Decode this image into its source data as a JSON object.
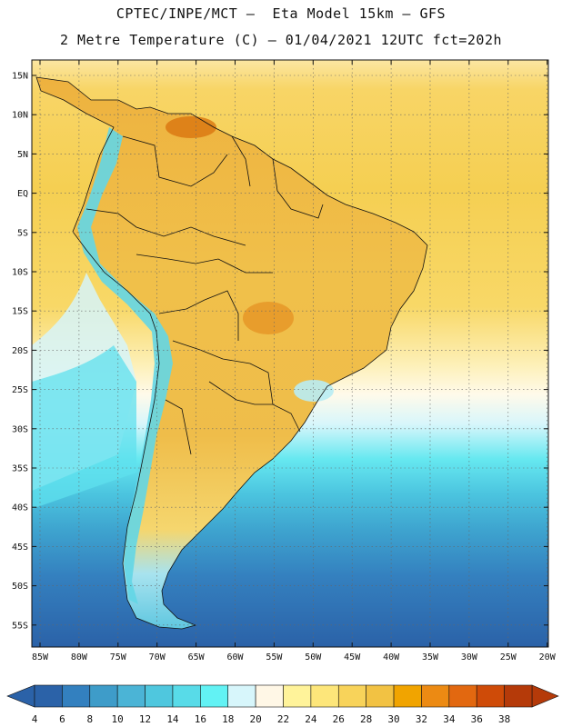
{
  "title_line1": "CPTEC/INPE/MCT –  Eta Model 15km – GFS",
  "title_line2": "2 Metre Temperature (C) – 01/04/2021 12UTC fct=202h",
  "latitude_labels": [
    "15N",
    "10N",
    "5N",
    "EQ",
    "5S",
    "10S",
    "15S",
    "20S",
    "25S",
    "30S",
    "35S",
    "40S",
    "45S",
    "50S",
    "55S"
  ],
  "longitude_labels": [
    "85W",
    "80W",
    "75W",
    "70W",
    "65W",
    "60W",
    "55W",
    "50W",
    "45W",
    "40W",
    "35W",
    "30W",
    "25W",
    "20W"
  ],
  "colorbar": {
    "ticks": [
      "4",
      "6",
      "8",
      "10",
      "12",
      "14",
      "16",
      "18",
      "20",
      "22",
      "24",
      "26",
      "28",
      "30",
      "32",
      "34",
      "36",
      "38"
    ],
    "colors": [
      "#2b62a8",
      "#3380bf",
      "#3e9cc9",
      "#4bb4d6",
      "#4fc7de",
      "#58dbe8",
      "#62f2f4",
      "#d7f6fb",
      "#fff7e6",
      "#fff39a",
      "#fde67a",
      "#f8d35a",
      "#f2c243",
      "#f1a400",
      "#ec8a13",
      "#e26810",
      "#cf4b08",
      "#b53a09"
    ],
    "left_arrow_color": "#2b62a8",
    "right_arrow_color": "#b53a09"
  },
  "colors": {
    "ocean_north": "#f7cf55",
    "ocean_mid": "#fdf5d4",
    "land_base": "#eec04a",
    "border": "#111111"
  }
}
